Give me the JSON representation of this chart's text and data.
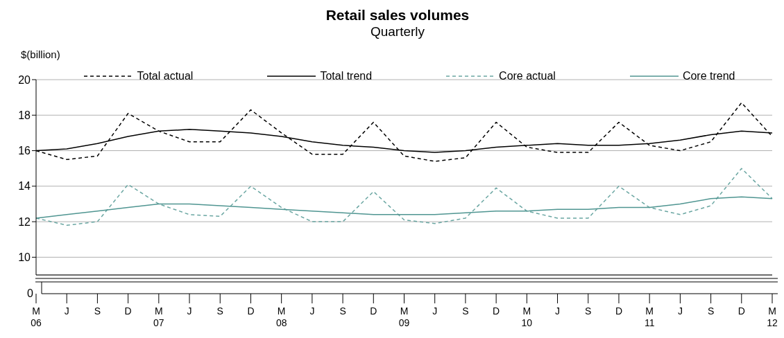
{
  "chart_data": {
    "type": "line",
    "title": "Retail sales volumes",
    "subtitle": "Quarterly",
    "ylabel": "$(billion)",
    "categories": [
      "M\n06",
      "J",
      "S",
      "D",
      "M\n07",
      "J",
      "S",
      "D",
      "M\n08",
      "J",
      "S",
      "D",
      "M\n09",
      "J",
      "S",
      "D",
      "M\n10",
      "J",
      "S",
      "D",
      "M\n11",
      "J",
      "S",
      "D",
      "M\n12"
    ],
    "series": [
      {
        "name": "Total actual",
        "color": "#000000",
        "line_style": "dashed",
        "values": [
          16.0,
          15.5,
          15.7,
          18.1,
          17.1,
          16.5,
          16.5,
          18.3,
          17.0,
          15.8,
          15.8,
          17.6,
          15.7,
          15.4,
          15.6,
          17.6,
          16.2,
          15.9,
          15.9,
          17.6,
          16.3,
          16.0,
          16.5,
          18.7,
          16.8
        ]
      },
      {
        "name": "Total trend",
        "color": "#000000",
        "line_style": "solid",
        "values": [
          16.0,
          16.1,
          16.4,
          16.8,
          17.1,
          17.2,
          17.1,
          17.0,
          16.8,
          16.5,
          16.3,
          16.2,
          16.0,
          15.9,
          16.0,
          16.2,
          16.3,
          16.4,
          16.3,
          16.3,
          16.4,
          16.6,
          16.9,
          17.1,
          17.0
        ]
      },
      {
        "name": "Core actual",
        "color": "#6aa6a2",
        "line_style": "dashed",
        "values": [
          12.2,
          11.8,
          12.0,
          14.1,
          13.0,
          12.4,
          12.3,
          14.0,
          12.8,
          12.0,
          12.0,
          13.7,
          12.1,
          11.9,
          12.2,
          13.9,
          12.6,
          12.2,
          12.2,
          14.0,
          12.8,
          12.4,
          12.9,
          15.0,
          13.3
        ]
      },
      {
        "name": "Core trend",
        "color": "#4f9591",
        "line_style": "solid",
        "values": [
          12.2,
          12.4,
          12.6,
          12.8,
          13.0,
          13.0,
          12.9,
          12.8,
          12.7,
          12.6,
          12.5,
          12.4,
          12.4,
          12.4,
          12.5,
          12.6,
          12.6,
          12.7,
          12.7,
          12.8,
          12.8,
          13.0,
          13.3,
          13.4,
          13.3
        ]
      }
    ],
    "ylim": [
      9,
      20
    ],
    "yticks": [
      10,
      12,
      14,
      16,
      18,
      20
    ],
    "grid": "y",
    "legend": "top",
    "annotations": [
      "0"
    ]
  }
}
